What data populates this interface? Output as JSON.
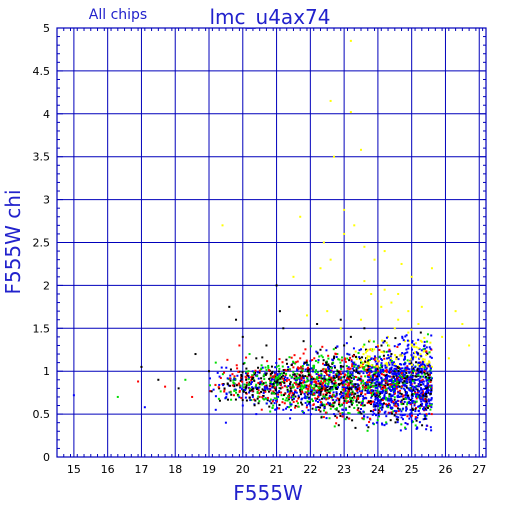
{
  "chart_data": {
    "type": "scatter",
    "title": "lmc_u4ax74",
    "subtitle": "All chips",
    "xlabel": "F555W",
    "ylabel": "F555W chi",
    "xlim": [
      14.5,
      27.2
    ],
    "ylim": [
      0,
      5
    ],
    "x_ticks": [
      15,
      16,
      17,
      18,
      19,
      20,
      21,
      22,
      23,
      24,
      25,
      26,
      27
    ],
    "y_ticks": [
      0,
      0.5,
      1,
      1.5,
      2,
      2.5,
      3,
      3.5,
      4,
      4.5,
      5
    ],
    "x_tick_labels": [
      "15",
      "16",
      "17",
      "18",
      "19",
      "20",
      "21",
      "22",
      "23",
      "24",
      "25",
      "26",
      "27"
    ],
    "y_tick_labels": [
      "0",
      "0.5",
      "1",
      "1.5",
      "2",
      "2.5",
      "3",
      "3.5",
      "4",
      "4.5",
      "5"
    ],
    "grid": true,
    "colors": {
      "grid": "#0000bb",
      "axes": "#0000bb",
      "title": "#2222cc",
      "series_yellow": "#ffff00",
      "series_black": "#000000",
      "series_red": "#ff0000",
      "series_green": "#00dd00",
      "series_blue": "#0000ff"
    },
    "series_colors": [
      "series_black",
      "series_red",
      "series_green",
      "series_blue",
      "series_yellow"
    ],
    "series": [
      {
        "color": "series_yellow",
        "points": [
          [
            22.6,
            4.15
          ],
          [
            23.2,
            4.02
          ],
          [
            23.2,
            4.85
          ],
          [
            23.5,
            3.58
          ],
          [
            22.7,
            3.5
          ],
          [
            23.0,
            2.88
          ],
          [
            19.4,
            2.7
          ],
          [
            21.7,
            2.8
          ],
          [
            22.4,
            2.5
          ],
          [
            22.6,
            2.3
          ],
          [
            23.0,
            2.6
          ],
          [
            23.3,
            2.7
          ],
          [
            23.6,
            2.45
          ],
          [
            23.9,
            2.3
          ],
          [
            24.2,
            2.4
          ],
          [
            24.7,
            2.25
          ],
          [
            25.0,
            2.1
          ],
          [
            25.6,
            2.2
          ],
          [
            26.3,
            1.7
          ],
          [
            26.5,
            1.55
          ],
          [
            26.7,
            1.3
          ],
          [
            26.1,
            1.15
          ],
          [
            25.9,
            1.4
          ],
          [
            23.8,
            1.9
          ],
          [
            24.1,
            1.75
          ],
          [
            24.4,
            1.8
          ],
          [
            24.6,
            1.6
          ],
          [
            24.9,
            1.7
          ],
          [
            25.2,
            1.55
          ],
          [
            24.3,
            1.4
          ],
          [
            24.5,
            1.5
          ],
          [
            24.8,
            1.35
          ],
          [
            23.5,
            1.6
          ],
          [
            22.9,
            1.5
          ],
          [
            22.5,
            1.7
          ],
          [
            21.9,
            1.65
          ],
          [
            24.0,
            1.3
          ],
          [
            24.7,
            1.2
          ],
          [
            25.4,
            1.3
          ],
          [
            25.1,
            1.0
          ],
          [
            24.3,
            1.15
          ],
          [
            23.7,
            1.25
          ],
          [
            25.6,
            1.05
          ],
          [
            24.9,
            1.45
          ],
          [
            24.2,
            1.95
          ],
          [
            23.6,
            2.05
          ],
          [
            22.3,
            2.2
          ],
          [
            21.5,
            2.1
          ],
          [
            24.6,
            1.9
          ],
          [
            25.3,
            1.75
          ]
        ]
      },
      {
        "color": "series_black",
        "points": [
          [
            17.0,
            1.05
          ],
          [
            17.5,
            0.9
          ],
          [
            18.1,
            0.8
          ],
          [
            18.6,
            1.2
          ],
          [
            19.0,
            1.0
          ],
          [
            19.6,
            1.75
          ],
          [
            19.8,
            1.6
          ],
          [
            20.1,
            0.9
          ],
          [
            20.7,
            1.3
          ],
          [
            21.0,
            2.0
          ],
          [
            21.2,
            1.5
          ],
          [
            21.5,
            1.1
          ],
          [
            21.8,
            1.35
          ],
          [
            22.0,
            0.95
          ],
          [
            22.3,
            1.25
          ],
          [
            22.6,
            1.05
          ],
          [
            22.9,
            1.6
          ],
          [
            23.2,
            1.4
          ],
          [
            23.5,
            1.1
          ],
          [
            23.8,
            1.0
          ],
          [
            24.1,
            0.85
          ],
          [
            24.4,
            1.2
          ],
          [
            24.7,
            1.0
          ],
          [
            20.4,
            1.15
          ],
          [
            20.9,
            0.75
          ],
          [
            21.4,
            0.85
          ],
          [
            22.2,
            1.55
          ],
          [
            23.0,
            1.3
          ],
          [
            23.6,
            1.5
          ],
          [
            22.7,
            1.15
          ],
          [
            21.1,
            1.7
          ],
          [
            19.3,
            0.8
          ],
          [
            20.0,
            1.4
          ],
          [
            24.2,
            1.35
          ]
        ]
      },
      {
        "color": "series_red",
        "points": [
          [
            16.9,
            0.88
          ],
          [
            17.7,
            0.82
          ],
          [
            18.5,
            0.7
          ],
          [
            19.4,
            0.85
          ],
          [
            19.9,
            1.3
          ],
          [
            20.3,
            0.95
          ],
          [
            20.8,
            1.0
          ],
          [
            21.3,
            0.9
          ],
          [
            21.7,
            1.15
          ],
          [
            22.1,
            0.8
          ],
          [
            22.5,
            1.0
          ],
          [
            22.9,
            0.9
          ],
          [
            23.3,
            1.1
          ],
          [
            23.7,
            0.95
          ],
          [
            24.0,
            1.05
          ],
          [
            24.6,
            0.9
          ],
          [
            25.0,
            0.85
          ],
          [
            20.5,
            0.7
          ],
          [
            21.6,
            0.65
          ],
          [
            23.1,
            0.7
          ]
        ]
      },
      {
        "color": "series_green",
        "points": [
          [
            16.3,
            0.7
          ],
          [
            18.3,
            0.9
          ],
          [
            19.2,
            1.1
          ],
          [
            19.8,
            0.78
          ],
          [
            20.2,
            1.2
          ],
          [
            20.6,
            0.85
          ],
          [
            21.0,
            1.05
          ],
          [
            21.4,
            0.95
          ],
          [
            21.9,
            1.1
          ],
          [
            22.4,
            0.88
          ],
          [
            22.8,
            1.2
          ],
          [
            23.2,
            0.95
          ],
          [
            23.6,
            1.05
          ],
          [
            24.0,
            0.9
          ],
          [
            24.3,
            1.3
          ],
          [
            24.8,
            1.1
          ],
          [
            25.2,
            0.95
          ],
          [
            20.9,
            0.6
          ],
          [
            22.6,
            0.7
          ],
          [
            24.5,
            0.75
          ]
        ]
      },
      {
        "color": "series_blue",
        "points": [
          [
            15.0,
            0.72
          ],
          [
            17.1,
            0.58
          ],
          [
            19.2,
            0.55
          ],
          [
            19.5,
            0.4
          ],
          [
            20.0,
            0.6
          ],
          [
            20.4,
            0.5
          ],
          [
            20.8,
            0.65
          ],
          [
            21.2,
            0.55
          ],
          [
            21.6,
            0.75
          ],
          [
            22.0,
            0.6
          ],
          [
            22.4,
            0.7
          ],
          [
            22.8,
            0.8
          ],
          [
            23.1,
            0.9
          ],
          [
            23.4,
            0.75
          ],
          [
            23.7,
            0.85
          ],
          [
            24.0,
            0.95
          ],
          [
            24.2,
            0.7
          ],
          [
            24.5,
            0.85
          ],
          [
            24.7,
            1.0
          ],
          [
            24.9,
            0.8
          ],
          [
            25.1,
            0.9
          ],
          [
            25.3,
            0.75
          ],
          [
            25.5,
            0.95
          ],
          [
            24.4,
            1.1
          ],
          [
            24.6,
            0.6
          ],
          [
            23.9,
            0.55
          ],
          [
            25.0,
            0.5
          ],
          [
            21.4,
            0.45
          ],
          [
            22.7,
            0.5
          ],
          [
            23.3,
            1.05
          ]
        ]
      }
    ]
  }
}
